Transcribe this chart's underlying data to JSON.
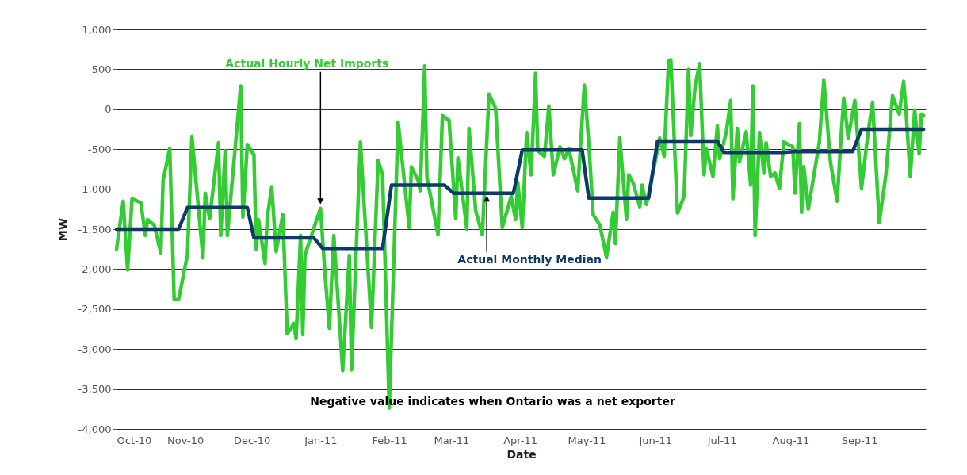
{
  "chart_data": {
    "type": "line",
    "xlabel": "Date",
    "ylabel": "MW",
    "xlim": [
      "2010-10-01",
      "2011-10-01"
    ],
    "xticks": [
      {
        "value": "2010-10-01",
        "label": "Oct-10"
      },
      {
        "value": "2010-11-01",
        "label": "Nov-10"
      },
      {
        "value": "2010-12-01",
        "label": "Dec-10"
      },
      {
        "value": "2011-01-01",
        "label": "Jan-11"
      },
      {
        "value": "2011-02-01",
        "label": "Feb-11"
      },
      {
        "value": "2011-03-01",
        "label": "Mar-11"
      },
      {
        "value": "2011-04-01",
        "label": "Apr-11"
      },
      {
        "value": "2011-05-01",
        "label": "May-11"
      },
      {
        "value": "2011-06-01",
        "label": "Jun-11"
      },
      {
        "value": "2011-07-01",
        "label": "Jul-11"
      },
      {
        "value": "2011-08-01",
        "label": "Aug-11"
      },
      {
        "value": "2011-09-01",
        "label": "Sep-11"
      }
    ],
    "ylim": [
      -4000,
      1000
    ],
    "yticks": [
      {
        "value": -4000,
        "label": "-4,000"
      },
      {
        "value": -3500,
        "label": "-3,500"
      },
      {
        "value": -3000,
        "label": "-3,000"
      },
      {
        "value": -2500,
        "label": "-2,500"
      },
      {
        "value": -2000,
        "label": "-2,000"
      },
      {
        "value": -1500,
        "label": "-1,500"
      },
      {
        "value": -1000,
        "label": "-1,000"
      },
      -500,
      0,
      500,
      {
        "value": 1000,
        "label": "1,000"
      }
    ],
    "grid": "y",
    "marker": "none",
    "line_style": "solid",
    "series": [
      {
        "color": "#33cc33",
        "x": [
          "2010-10-01",
          "2010-10-04",
          "2010-10-06",
          "2010-10-08",
          "2010-10-12",
          "2010-10-14",
          "2010-10-15",
          "2010-10-18",
          "2010-10-21",
          "2010-10-22",
          "2010-10-25",
          "2010-10-27",
          "2010-10-29",
          "2010-11-02",
          "2010-11-04",
          "2010-11-09",
          "2010-11-10",
          "2010-11-12",
          "2010-11-16",
          "2010-11-17",
          "2010-11-19",
          "2010-11-20",
          "2010-11-26",
          "2010-11-27",
          "2010-11-29",
          "2010-12-02",
          "2010-12-03",
          "2010-12-04",
          "2010-12-07",
          "2010-12-08",
          "2010-12-10",
          "2010-12-12",
          "2010-12-15",
          "2010-12-17",
          "2010-12-20",
          "2010-12-21",
          "2010-12-23",
          "2010-12-24",
          "2010-12-25",
          "2011-01-01",
          "2011-01-03",
          "2011-01-05",
          "2011-01-07",
          "2011-01-11",
          "2011-01-14",
          "2011-01-15",
          "2011-01-19",
          "2011-01-24",
          "2011-01-27",
          "2011-01-29",
          "2011-02-01",
          "2011-02-05",
          "2011-02-10",
          "2011-02-11",
          "2011-02-14",
          "2011-02-15",
          "2011-02-17",
          "2011-02-18",
          "2011-02-23",
          "2011-02-25",
          "2011-02-28",
          "2011-03-03",
          "2011-03-04",
          "2011-03-08",
          "2011-03-09",
          "2011-03-12",
          "2011-03-15",
          "2011-03-18",
          "2011-03-21",
          "2011-03-24",
          "2011-03-28",
          "2011-03-30",
          "2011-03-31",
          "2011-04-02",
          "2011-04-04",
          "2011-04-06",
          "2011-04-08",
          "2011-04-09",
          "2011-04-12",
          "2011-04-14",
          "2011-04-16",
          "2011-04-19",
          "2011-04-21",
          "2011-04-23",
          "2011-04-27",
          "2011-04-30",
          "2011-05-02",
          "2011-05-04",
          "2011-05-07",
          "2011-05-10",
          "2011-05-13",
          "2011-05-14",
          "2011-05-16",
          "2011-05-19",
          "2011-05-20",
          "2011-05-22",
          "2011-05-25",
          "2011-05-26",
          "2011-05-28",
          "2011-05-31",
          "2011-06-03",
          "2011-06-05",
          "2011-06-07",
          "2011-06-08",
          "2011-06-11",
          "2011-06-14",
          "2011-06-16",
          "2011-06-17",
          "2011-06-19",
          "2011-06-21",
          "2011-06-23",
          "2011-06-24",
          "2011-06-27",
          "2011-06-29",
          "2011-06-30",
          "2011-07-03",
          "2011-07-05",
          "2011-07-06",
          "2011-07-08",
          "2011-07-09",
          "2011-07-12",
          "2011-07-14",
          "2011-07-15",
          "2011-07-16",
          "2011-07-18",
          "2011-07-20",
          "2011-07-21",
          "2011-07-23",
          "2011-07-25",
          "2011-07-27",
          "2011-07-29",
          "2011-08-02",
          "2011-08-03",
          "2011-08-05",
          "2011-08-06",
          "2011-08-07",
          "2011-08-09",
          "2011-08-14",
          "2011-08-16",
          "2011-08-19",
          "2011-08-22",
          "2011-08-24",
          "2011-08-25",
          "2011-08-27",
          "2011-08-30",
          "2011-09-02",
          "2011-09-05",
          "2011-09-07",
          "2011-09-10",
          "2011-09-13",
          "2011-09-16",
          "2011-09-19",
          "2011-09-21",
          "2011-09-22",
          "2011-09-24",
          "2011-09-26",
          "2011-09-28",
          "2011-09-29",
          "2011-09-30"
        ],
        "values": [
          -1750,
          -1150,
          -2010,
          -1120,
          -1170,
          -1580,
          -1380,
          -1450,
          -1800,
          -890,
          -490,
          -2380,
          -2380,
          -1820,
          -340,
          -1860,
          -1050,
          -1370,
          -420,
          -1580,
          -520,
          -1580,
          290,
          -1350,
          -440,
          -570,
          -1750,
          -1380,
          -1930,
          -1350,
          -970,
          -1780,
          -1320,
          -2810,
          -2680,
          -2870,
          -1580,
          -2820,
          -1820,
          -1240,
          -2050,
          -2740,
          -1580,
          -3270,
          -1830,
          -3260,
          -410,
          -2730,
          -640,
          -820,
          -3740,
          -160,
          -1480,
          -720,
          -890,
          -1020,
          540,
          -850,
          -1570,
          -80,
          -140,
          -1370,
          -610,
          -1500,
          -240,
          -1270,
          -1570,
          190,
          10,
          -1480,
          -1090,
          -1380,
          -920,
          -1480,
          -290,
          -820,
          450,
          -520,
          -590,
          40,
          -820,
          -470,
          -620,
          -490,
          -1020,
          300,
          -420,
          -1320,
          -1450,
          -1850,
          -1290,
          -1680,
          -360,
          -1380,
          -820,
          -920,
          -1220,
          -950,
          -1190,
          -790,
          -360,
          -590,
          600,
          620,
          -1300,
          -1090,
          500,
          -330,
          300,
          570,
          -820,
          -490,
          -840,
          -210,
          -620,
          -290,
          110,
          -1120,
          -240,
          -660,
          -280,
          -950,
          290,
          -1580,
          -290,
          -800,
          -420,
          -840,
          -800,
          -990,
          -410,
          -470,
          -1050,
          -180,
          -1290,
          -720,
          -1250,
          -410,
          370,
          -660,
          -1150,
          -260,
          140,
          -360,
          110,
          -990,
          -290,
          90,
          -1420,
          -820,
          170,
          -60,
          350,
          10,
          -840,
          -10,
          -560,
          -60,
          -80
        ]
      },
      {
        "color": "#0d3a6b",
        "x": [
          "2010-10-01",
          "2010-10-29",
          "2010-11-02",
          "2010-11-29",
          "2010-12-02",
          "2010-12-29",
          "2011-01-02",
          "2011-01-29",
          "2011-02-02",
          "2011-02-26",
          "2011-03-02",
          "2011-03-29",
          "2011-04-02",
          "2011-04-29",
          "2011-05-02",
          "2011-05-29",
          "2011-06-02",
          "2011-06-29",
          "2011-07-02",
          "2011-07-29",
          "2011-08-02",
          "2011-08-29",
          "2011-09-02",
          "2011-09-30"
        ],
        "values": [
          -1500,
          -1500,
          -1230,
          -1230,
          -1610,
          -1610,
          -1740,
          -1740,
          -950,
          -950,
          -1050,
          -1050,
          -510,
          -510,
          -1110,
          -1110,
          -400,
          -400,
          -540,
          -540,
          -530,
          -530,
          -250,
          -250
        ]
      }
    ],
    "annotations": [
      {
        "text": "Actual Hourly Net Imports",
        "x": "2011-01-01",
        "y": -1200
      },
      {
        "text": "Actual Monthly Median",
        "x": "2011-03-17",
        "y": -1070
      },
      "Negative value indicates when Ontario was a net exporter"
    ]
  }
}
